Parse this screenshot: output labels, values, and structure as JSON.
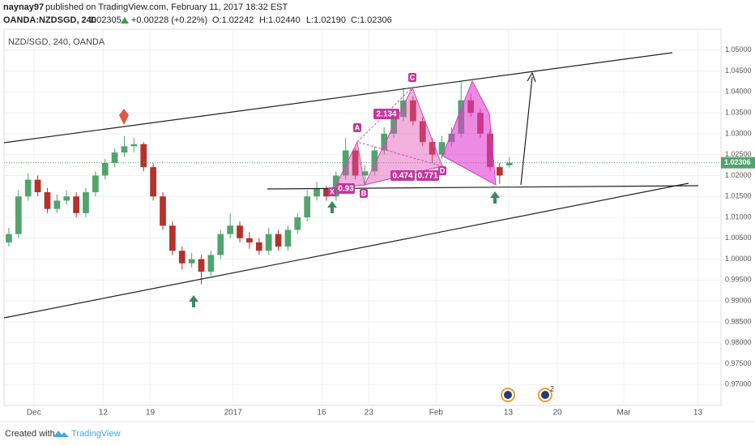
{
  "header": {
    "author": "naynay97",
    "published": "published on TradingView.com, February 11, 2017 18:32 EST",
    "symbol": "OANDA:NZDSGD, 240",
    "price": "1.02305",
    "change": "+0.00228 (+0.22%)",
    "o": "O:1.02242",
    "h": "H:1.02440",
    "l": "L:1.02190",
    "c": "C:1.02306"
  },
  "footer": {
    "created": "Created with",
    "brand": "TradingView"
  },
  "chart_data": {
    "type": "candlestick",
    "title": "NZD/SGD, 240, OANDA",
    "up_color": "#53a36e",
    "down_color": "#b5312a",
    "open": [
      1.004,
      1.006,
      1.015,
      1.019,
      1.016,
      1.012,
      1.014,
      1.015,
      1.011,
      1.016,
      1.02,
      1.023,
      1.0255,
      1.027,
      1.0275,
      1.022,
      1.015,
      1.008,
      1.002,
      0.999,
      1.0,
      0.997,
      1.001,
      1.006,
      1.008,
      1.005,
      1.004,
      1.002,
      1.006,
      1.003,
      1.007,
      1.01,
      1.015,
      1.017,
      1.015,
      1.02,
      1.026,
      1.02,
      1.021,
      1.026,
      1.03,
      1.034,
      1.038,
      1.033,
      1.028,
      1.025,
      1.028,
      1.03,
      1.038,
      1.035,
      1.03,
      1.022,
      1.02242
    ],
    "high": [
      1.0075,
      1.0165,
      1.0205,
      1.02,
      1.017,
      1.0155,
      1.0165,
      1.016,
      1.017,
      1.021,
      1.024,
      1.0265,
      1.0295,
      1.029,
      1.028,
      1.023,
      1.016,
      1.009,
      1.003,
      1.0015,
      1.001,
      1.002,
      1.007,
      1.011,
      1.009,
      1.0065,
      1.005,
      1.0075,
      1.007,
      1.008,
      1.011,
      1.0165,
      1.0185,
      1.0175,
      1.021,
      1.029,
      1.0265,
      1.0225,
      1.027,
      1.0315,
      1.0355,
      1.041,
      1.039,
      1.034,
      1.029,
      1.0295,
      1.0315,
      1.0425,
      1.0395,
      1.036,
      1.031,
      1.023,
      1.0244
    ],
    "low": [
      1.003,
      1.005,
      1.014,
      1.015,
      1.011,
      1.011,
      1.013,
      1.01,
      1.01,
      1.015,
      1.019,
      1.022,
      1.0245,
      1.0255,
      1.021,
      1.014,
      1.007,
      1.001,
      0.9975,
      0.998,
      0.994,
      0.996,
      1.0,
      1.005,
      1.004,
      1.0025,
      1.001,
      1.001,
      1.002,
      1.002,
      1.006,
      1.009,
      1.014,
      1.014,
      1.014,
      1.019,
      1.019,
      1.018,
      1.02,
      1.025,
      1.029,
      1.033,
      1.032,
      1.027,
      1.023,
      1.024,
      1.027,
      1.029,
      1.034,
      1.029,
      1.021,
      1.018,
      1.0219
    ],
    "close": [
      1.006,
      1.015,
      1.019,
      1.016,
      1.012,
      1.014,
      1.015,
      1.011,
      1.016,
      1.02,
      1.023,
      1.0255,
      1.027,
      1.0275,
      1.022,
      1.015,
      1.008,
      1.002,
      0.999,
      1.0,
      0.997,
      1.001,
      1.006,
      1.008,
      1.005,
      1.004,
      1.002,
      1.006,
      1.003,
      1.007,
      1.01,
      1.015,
      1.017,
      1.015,
      1.02,
      1.026,
      1.02,
      1.021,
      1.026,
      1.03,
      1.034,
      1.038,
      1.033,
      1.028,
      1.025,
      1.028,
      1.03,
      1.038,
      1.035,
      1.03,
      1.022,
      1.02,
      1.02306
    ],
    "last_price_label": "1.02306",
    "xlim": [
      -0.5,
      74
    ],
    "xticks": [
      {
        "value": 2.6,
        "label": "Dec"
      },
      {
        "value": 9.8,
        "label": "12"
      },
      {
        "value": 14.7,
        "label": "19"
      },
      {
        "value": 23.3,
        "label": "2017"
      },
      {
        "value": 32.5,
        "label": "16"
      },
      {
        "value": 37.4,
        "label": "23"
      },
      {
        "value": 44.4,
        "label": "Feb"
      },
      {
        "value": 51.9,
        "label": "13"
      },
      {
        "value": 57,
        "label": "20"
      },
      {
        "value": 63.9,
        "label": "Mar"
      },
      {
        "value": 71.6,
        "label": "13"
      }
    ],
    "ylim": [
      0.965,
      1.055
    ],
    "yticks": [
      {
        "value": 0.97,
        "label": "0.97000"
      },
      {
        "value": 0.975,
        "label": "0.97500"
      },
      {
        "value": 0.98,
        "label": "0.98000"
      },
      {
        "value": 0.985,
        "label": "0.98500"
      },
      {
        "value": 0.99,
        "label": "0.99000"
      },
      {
        "value": 0.995,
        "label": "0.99500"
      },
      {
        "value": 1,
        "label": "1.00000"
      },
      {
        "value": 1.005,
        "label": "1.00500"
      },
      {
        "value": 1.01,
        "label": "1.01000"
      },
      {
        "value": 1.015,
        "label": "1.01500"
      },
      {
        "value": 1.02,
        "label": "1.02000"
      },
      {
        "value": 1.025,
        "label": "1.02500"
      },
      {
        "value": 1.03,
        "label": "1.03000"
      },
      {
        "value": 1.035,
        "label": "1.03500"
      },
      {
        "value": 1.04,
        "label": "1.04000"
      },
      {
        "value": 1.045,
        "label": "1.04500"
      },
      {
        "value": 1.05,
        "label": "1.05000"
      }
    ],
    "grid": true,
    "annotations": {
      "x": "X",
      "a": "A",
      "b": "B",
      "c": "C",
      "d": "D",
      "r1": "2.134",
      "r2": "0.474",
      "r3": "0.771",
      "r4": "0.93",
      "event": "2"
    }
  }
}
